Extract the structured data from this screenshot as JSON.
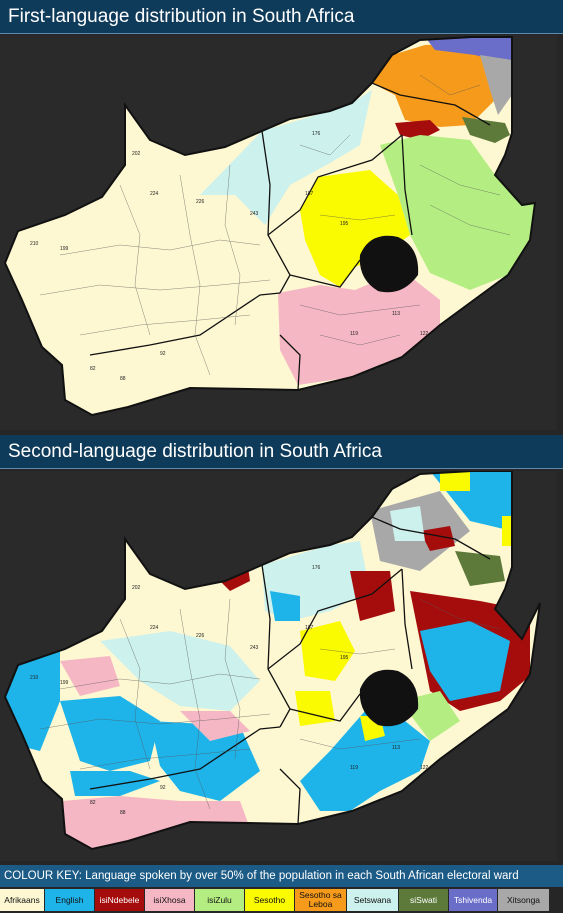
{
  "titles": {
    "first": "First-language distribution in South Africa",
    "second": "Second-language distribution in South Africa"
  },
  "key": {
    "title": "COLOUR KEY: Language spoken by over 50% of the population in each South African electoral ward",
    "items": [
      {
        "label": "Afrikaans",
        "color": "#fdf8d2"
      },
      {
        "label": "English",
        "color": "#1eb4ea"
      },
      {
        "label": "isiNdebele",
        "color": "#a50d0d"
      },
      {
        "label": "isiXhosa",
        "color": "#f5b7c4"
      },
      {
        "label": "isiZulu",
        "color": "#b4ee82"
      },
      {
        "label": "Sesotho",
        "color": "#fafa00"
      },
      {
        "label": "Sesotho sa Leboa",
        "color": "#f59a1a"
      },
      {
        "label": "Setswana",
        "color": "#cdf1ec"
      },
      {
        "label": "siSwati",
        "color": "#5d7a3b"
      },
      {
        "label": "Tshivenda",
        "color": "#6a6ec9"
      },
      {
        "label": "Xitsonga",
        "color": "#a8a8a8"
      }
    ]
  },
  "maps": {
    "first": {
      "zone_labels": [
        "202",
        "224",
        "226",
        "243",
        "210",
        "199",
        "176",
        "187",
        "195",
        "122",
        "113",
        "119",
        "82",
        "92",
        "88"
      ]
    },
    "second": {
      "zone_labels": [
        "202",
        "224",
        "226",
        "243",
        "210",
        "199",
        "176",
        "187",
        "195",
        "122",
        "113",
        "119",
        "82",
        "92",
        "88"
      ]
    }
  }
}
